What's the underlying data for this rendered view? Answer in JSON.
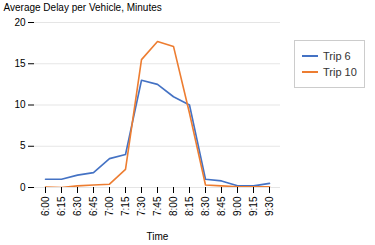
{
  "chart_data": {
    "type": "line",
    "categories": [
      "6:00",
      "6:15",
      "6:30",
      "6:45",
      "7:00",
      "7:15",
      "7:30",
      "7:45",
      "8:00",
      "8:15",
      "8:30",
      "8:45",
      "9:00",
      "9:15",
      "9:30"
    ],
    "series": [
      {
        "name": "Trip 6",
        "color": "#4472C4",
        "values": [
          1.0,
          1.0,
          1.5,
          1.8,
          3.5,
          4.0,
          13.0,
          12.5,
          11.0,
          10.0,
          1.0,
          0.8,
          0.2,
          0.2,
          0.5
        ]
      },
      {
        "name": "Trip 10",
        "color": "#ED7D31",
        "values": [
          0.05,
          0.0,
          0.2,
          0.3,
          0.4,
          2.2,
          15.5,
          17.7,
          17.1,
          9.0,
          0.3,
          0.2,
          0.1,
          0.1,
          0.1
        ]
      }
    ],
    "xlabel": "Time",
    "ylabel": "Average Delay per Vehicle, Minutes",
    "ylim": [
      0,
      20
    ],
    "yticks": [
      0,
      5,
      10,
      15,
      20
    ],
    "grid": true,
    "legend": "right"
  }
}
